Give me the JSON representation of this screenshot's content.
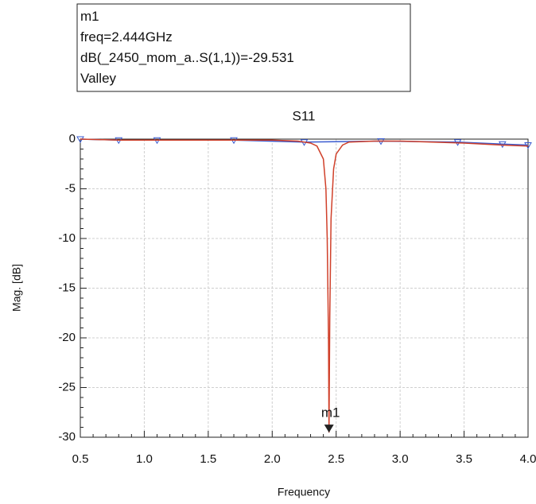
{
  "chart_data": {
    "type": "line",
    "title": "S11",
    "x_label": "Frequency",
    "y_label": "Mag. [dB]",
    "marker_box": [
      "m1",
      "freq=2.444GHz",
      "dB(_2450_mom_a..S(1,1))=-29.531",
      "Valley"
    ],
    "marker": {
      "label": "m1",
      "x": 2.444,
      "y": -29.531
    },
    "xlim": [
      0.5,
      4.0
    ],
    "ylim": [
      -30,
      0
    ],
    "xticks": [
      0.5,
      {
        "value": 1,
        "label": "1.0"
      },
      1.5,
      {
        "value": 2,
        "label": "2.0"
      },
      2.5,
      {
        "value": 3,
        "label": "3.0"
      },
      3.5,
      {
        "value": 4,
        "label": "4.0"
      }
    ],
    "yticks": [
      0,
      -5,
      -10,
      -15,
      -20,
      -25,
      -30
    ],
    "grid": true,
    "series": [
      {
        "color": "#3a5bd0",
        "markers": true,
        "x": [
          0.5,
          0.8,
          1.1,
          1.7,
          2.25,
          2.85,
          3.45,
          3.8,
          4.0
        ],
        "values": [
          0,
          -0.1,
          -0.1,
          -0.1,
          -0.3,
          -0.2,
          -0.3,
          -0.5,
          -0.6
        ]
      },
      {
        "color": "#d0402a",
        "markers": false,
        "x": [
          0.5,
          0.8,
          1.0,
          1.5,
          2.0,
          2.2,
          2.3,
          2.35,
          2.4,
          2.42,
          2.43,
          2.44,
          2.444,
          2.45,
          2.46,
          2.48,
          2.5,
          2.55,
          2.6,
          2.8,
          3.0,
          3.5,
          3.8,
          4.0
        ],
        "values": [
          0,
          -0.1,
          -0.1,
          -0.1,
          -0.1,
          -0.2,
          -0.4,
          -0.7,
          -2,
          -5,
          -10,
          -20,
          -29.531,
          -18,
          -8,
          -3,
          -1.5,
          -0.6,
          -0.3,
          -0.2,
          -0.2,
          -0.4,
          -0.6,
          -0.7
        ]
      }
    ]
  }
}
